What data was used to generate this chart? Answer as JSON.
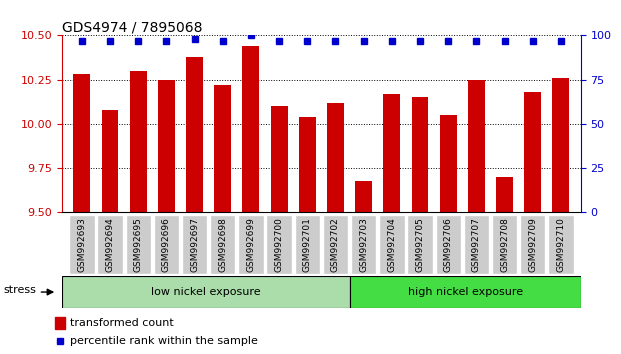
{
  "title": "GDS4974 / 7895068",
  "categories": [
    "GSM992693",
    "GSM992694",
    "GSM992695",
    "GSM992696",
    "GSM992697",
    "GSM992698",
    "GSM992699",
    "GSM992700",
    "GSM992701",
    "GSM992702",
    "GSM992703",
    "GSM992704",
    "GSM992705",
    "GSM992706",
    "GSM992707",
    "GSM992708",
    "GSM992709",
    "GSM992710"
  ],
  "bar_values": [
    10.28,
    10.08,
    10.3,
    10.25,
    10.38,
    10.22,
    10.44,
    10.1,
    10.04,
    10.12,
    9.68,
    10.17,
    10.15,
    10.05,
    10.25,
    9.7,
    10.18,
    10.26
  ],
  "percentile_values": [
    97,
    97,
    97,
    97,
    98,
    97,
    100,
    97,
    97,
    97,
    97,
    97,
    97,
    97,
    97,
    97,
    97,
    97
  ],
  "bar_color": "#CC0000",
  "percentile_color": "#0000CC",
  "ylim_left": [
    9.5,
    10.5
  ],
  "ylim_right": [
    0,
    100
  ],
  "yticks_left": [
    9.5,
    9.75,
    10.0,
    10.25,
    10.5
  ],
  "yticks_right": [
    0,
    25,
    50,
    75,
    100
  ],
  "group1_label": "low nickel exposure",
  "group2_label": "high nickel exposure",
  "group1_count": 10,
  "group2_count": 8,
  "stress_label": "stress",
  "legend_bar_label": "transformed count",
  "legend_dot_label": "percentile rank within the sample",
  "bg_color": "#FFFFFF",
  "plot_bg_color": "#FFFFFF",
  "group1_color": "#AADDAA",
  "group2_color": "#44DD44",
  "right_axis_color": "#0000CC",
  "left_axis_color": "#CC0000",
  "xtick_bg_color": "#CCCCCC",
  "title_fontsize": 10,
  "tick_fontsize": 8,
  "label_fontsize": 8
}
